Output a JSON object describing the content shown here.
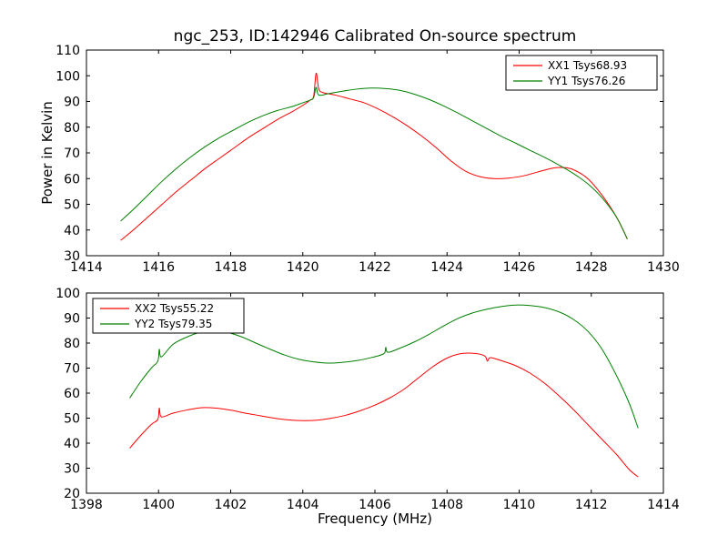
{
  "figure": {
    "title": "ngc_253, ID:142946 Calibrated On-source spectrum",
    "xlabel": "Frequency (MHz)",
    "ylabel": "Power in Kelvin",
    "background": "#ffffff",
    "axis_color": "#000000"
  },
  "chart_data": [
    {
      "type": "line",
      "title": "ngc_253, ID:142946 Calibrated On-source spectrum",
      "xlabel": "",
      "ylabel": "Power in Kelvin",
      "xlim": [
        1414,
        1430
      ],
      "ylim": [
        30,
        110
      ],
      "xticks": [
        1414,
        1416,
        1418,
        1420,
        1422,
        1424,
        1426,
        1428,
        1430
      ],
      "yticks": [
        30,
        40,
        50,
        60,
        70,
        80,
        90,
        100,
        110
      ],
      "grid": false,
      "legend": {
        "position": "top-right"
      },
      "series": [
        {
          "id": "XX1",
          "name": "XX1 Tsys68.93",
          "color": "#ff0000",
          "points": [
            [
              1414.95,
              36
            ],
            [
              1415.3,
              40
            ],
            [
              1415.7,
              45
            ],
            [
              1416.1,
              50
            ],
            [
              1416.5,
              55
            ],
            [
              1416.9,
              59.5
            ],
            [
              1417.3,
              64
            ],
            [
              1417.7,
              68
            ],
            [
              1418.1,
              72
            ],
            [
              1418.5,
              76
            ],
            [
              1418.9,
              79.5
            ],
            [
              1419.3,
              83
            ],
            [
              1419.7,
              86
            ],
            [
              1420.0,
              88.5
            ],
            [
              1420.2,
              90.5
            ],
            [
              1420.3,
              92
            ],
            [
              1420.37,
              101
            ],
            [
              1420.44,
              95
            ],
            [
              1420.55,
              93.5
            ],
            [
              1420.9,
              92.5
            ],
            [
              1421.3,
              91
            ],
            [
              1421.7,
              89.5
            ],
            [
              1422.1,
              87
            ],
            [
              1422.5,
              84
            ],
            [
              1422.9,
              80.5
            ],
            [
              1423.3,
              76.5
            ],
            [
              1423.7,
              72
            ],
            [
              1424.1,
              67
            ],
            [
              1424.5,
              63
            ],
            [
              1424.9,
              60.8
            ],
            [
              1425.3,
              60
            ],
            [
              1425.7,
              60.2
            ],
            [
              1426.1,
              61
            ],
            [
              1426.5,
              62.5
            ],
            [
              1426.9,
              64
            ],
            [
              1427.2,
              64.3
            ],
            [
              1427.5,
              63.5
            ],
            [
              1427.9,
              60
            ],
            [
              1428.3,
              53.5
            ],
            [
              1428.7,
              45
            ],
            [
              1429.0,
              36.5
            ]
          ]
        },
        {
          "id": "YY1",
          "name": "YY1 Tsys76.26",
          "color": "#008000",
          "points": [
            [
              1414.95,
              43.5
            ],
            [
              1415.3,
              48
            ],
            [
              1415.7,
              53.5
            ],
            [
              1416.1,
              59
            ],
            [
              1416.5,
              64
            ],
            [
              1416.9,
              68.5
            ],
            [
              1417.3,
              72.5
            ],
            [
              1417.7,
              76
            ],
            [
              1418.1,
              79
            ],
            [
              1418.5,
              82
            ],
            [
              1418.9,
              84.5
            ],
            [
              1419.3,
              86.5
            ],
            [
              1419.7,
              88
            ],
            [
              1420.0,
              89.5
            ],
            [
              1420.2,
              90.5
            ],
            [
              1420.3,
              91.5
            ],
            [
              1420.37,
              95.5
            ],
            [
              1420.44,
              92.5
            ],
            [
              1420.7,
              93
            ],
            [
              1421.1,
              94
            ],
            [
              1421.5,
              94.8
            ],
            [
              1421.9,
              95.2
            ],
            [
              1422.3,
              95
            ],
            [
              1422.7,
              94.3
            ],
            [
              1423.1,
              92.8
            ],
            [
              1423.5,
              90.8
            ],
            [
              1423.9,
              88.3
            ],
            [
              1424.3,
              85.5
            ],
            [
              1424.7,
              82.5
            ],
            [
              1425.1,
              79.5
            ],
            [
              1425.5,
              76.5
            ],
            [
              1425.9,
              73.8
            ],
            [
              1426.3,
              71
            ],
            [
              1426.7,
              68.3
            ],
            [
              1427.1,
              65.3
            ],
            [
              1427.5,
              62
            ],
            [
              1427.9,
              58
            ],
            [
              1428.3,
              52.5
            ],
            [
              1428.7,
              45
            ],
            [
              1429.0,
              36.5
            ]
          ]
        }
      ]
    },
    {
      "type": "line",
      "title": "",
      "xlabel": "Frequency (MHz)",
      "ylabel": "",
      "xlim": [
        1398,
        1414
      ],
      "ylim": [
        20,
        100
      ],
      "xticks": [
        1398,
        1400,
        1402,
        1404,
        1406,
        1408,
        1410,
        1412,
        1414
      ],
      "yticks": [
        20,
        30,
        40,
        50,
        60,
        70,
        80,
        90,
        100
      ],
      "grid": false,
      "legend": {
        "position": "top-left"
      },
      "series": [
        {
          "id": "XX2",
          "name": "XX2 Tsys55.22",
          "color": "#ff0000",
          "points": [
            [
              1399.2,
              38
            ],
            [
              1399.5,
              43
            ],
            [
              1399.8,
              47.5
            ],
            [
              1399.98,
              49.5
            ],
            [
              1400.02,
              54
            ],
            [
              1400.08,
              50.5
            ],
            [
              1400.4,
              52
            ],
            [
              1400.8,
              53.3
            ],
            [
              1401.2,
              54.2
            ],
            [
              1401.6,
              54
            ],
            [
              1402.0,
              53.2
            ],
            [
              1402.4,
              52
            ],
            [
              1402.8,
              51
            ],
            [
              1403.2,
              50
            ],
            [
              1403.6,
              49.3
            ],
            [
              1404.0,
              49
            ],
            [
              1404.4,
              49.2
            ],
            [
              1404.8,
              50
            ],
            [
              1405.2,
              51.2
            ],
            [
              1405.6,
              53
            ],
            [
              1406.0,
              55.2
            ],
            [
              1406.4,
              58
            ],
            [
              1406.8,
              61.5
            ],
            [
              1407.2,
              66
            ],
            [
              1407.6,
              70.5
            ],
            [
              1408.0,
              74
            ],
            [
              1408.4,
              75.8
            ],
            [
              1408.8,
              75.8
            ],
            [
              1409.05,
              74.8
            ],
            [
              1409.12,
              72.8
            ],
            [
              1409.2,
              74.2
            ],
            [
              1409.5,
              73
            ],
            [
              1409.9,
              71
            ],
            [
              1410.3,
              68
            ],
            [
              1410.7,
              64
            ],
            [
              1411.1,
              59
            ],
            [
              1411.5,
              53.5
            ],
            [
              1411.9,
              47.5
            ],
            [
              1412.3,
              41.5
            ],
            [
              1412.7,
              35.5
            ],
            [
              1413.05,
              29.5
            ],
            [
              1413.3,
              26.5
            ]
          ]
        },
        {
          "id": "YY2",
          "name": "YY2 Tsys79.35",
          "color": "#008000",
          "points": [
            [
              1399.2,
              58
            ],
            [
              1399.5,
              64.5
            ],
            [
              1399.8,
              70
            ],
            [
              1399.98,
              72.8
            ],
            [
              1400.02,
              77.5
            ],
            [
              1400.08,
              74.5
            ],
            [
              1400.4,
              79.5
            ],
            [
              1400.8,
              82.5
            ],
            [
              1401.2,
              84.5
            ],
            [
              1401.5,
              85
            ],
            [
              1401.9,
              84.3
            ],
            [
              1402.3,
              82.5
            ],
            [
              1402.7,
              80
            ],
            [
              1403.1,
              77.5
            ],
            [
              1403.5,
              75.2
            ],
            [
              1403.9,
              73.5
            ],
            [
              1404.3,
              72.5
            ],
            [
              1404.7,
              72
            ],
            [
              1405.1,
              72.3
            ],
            [
              1405.5,
              73
            ],
            [
              1405.9,
              74.2
            ],
            [
              1406.25,
              75.8
            ],
            [
              1406.3,
              78.3
            ],
            [
              1406.36,
              76.3
            ],
            [
              1406.7,
              78
            ],
            [
              1407.1,
              80.5
            ],
            [
              1407.5,
              83.5
            ],
            [
              1407.9,
              86.8
            ],
            [
              1408.3,
              89.8
            ],
            [
              1408.7,
              92
            ],
            [
              1409.1,
              93.5
            ],
            [
              1409.5,
              94.6
            ],
            [
              1409.9,
              95.2
            ],
            [
              1410.3,
              95
            ],
            [
              1410.7,
              94.2
            ],
            [
              1411.1,
              92.5
            ],
            [
              1411.5,
              89.5
            ],
            [
              1411.9,
              84.8
            ],
            [
              1412.3,
              77.5
            ],
            [
              1412.7,
              67
            ],
            [
              1413.05,
              56
            ],
            [
              1413.3,
              46
            ]
          ]
        }
      ]
    }
  ]
}
